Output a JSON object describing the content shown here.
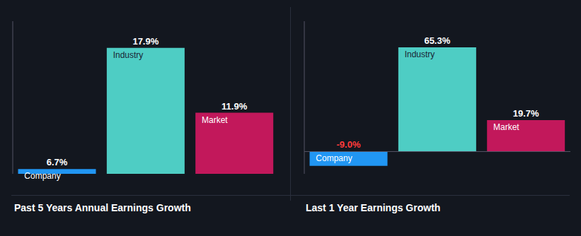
{
  "chart_data": [
    {
      "type": "bar",
      "title": "Past 5 Years Annual Earnings Growth",
      "categories": [
        "Company",
        "Industry",
        "Market"
      ],
      "values": [
        6.7,
        17.9,
        11.9
      ],
      "value_labels": [
        "6.7%",
        "17.9%",
        "11.9%"
      ],
      "colors": [
        "#2196f3",
        "#4ecdc4",
        "#c2185b"
      ],
      "ylim": [
        6.252,
        20.364
      ],
      "data_labels": true,
      "tick_labels": false,
      "grid": false
    },
    {
      "type": "bar",
      "title": "Last 1 Year Earnings Growth",
      "categories": [
        "Company",
        "Industry",
        "Market"
      ],
      "values": [
        -9.0,
        65.3,
        19.7
      ],
      "value_labels": [
        "-9.0%",
        "65.3%",
        "19.7%"
      ],
      "colors": [
        "#2196f3",
        "#4ecdc4",
        "#c2185b"
      ],
      "ylim": [
        -13.95,
        81.646
      ],
      "data_labels": true,
      "tick_labels": false,
      "grid": false
    }
  ]
}
